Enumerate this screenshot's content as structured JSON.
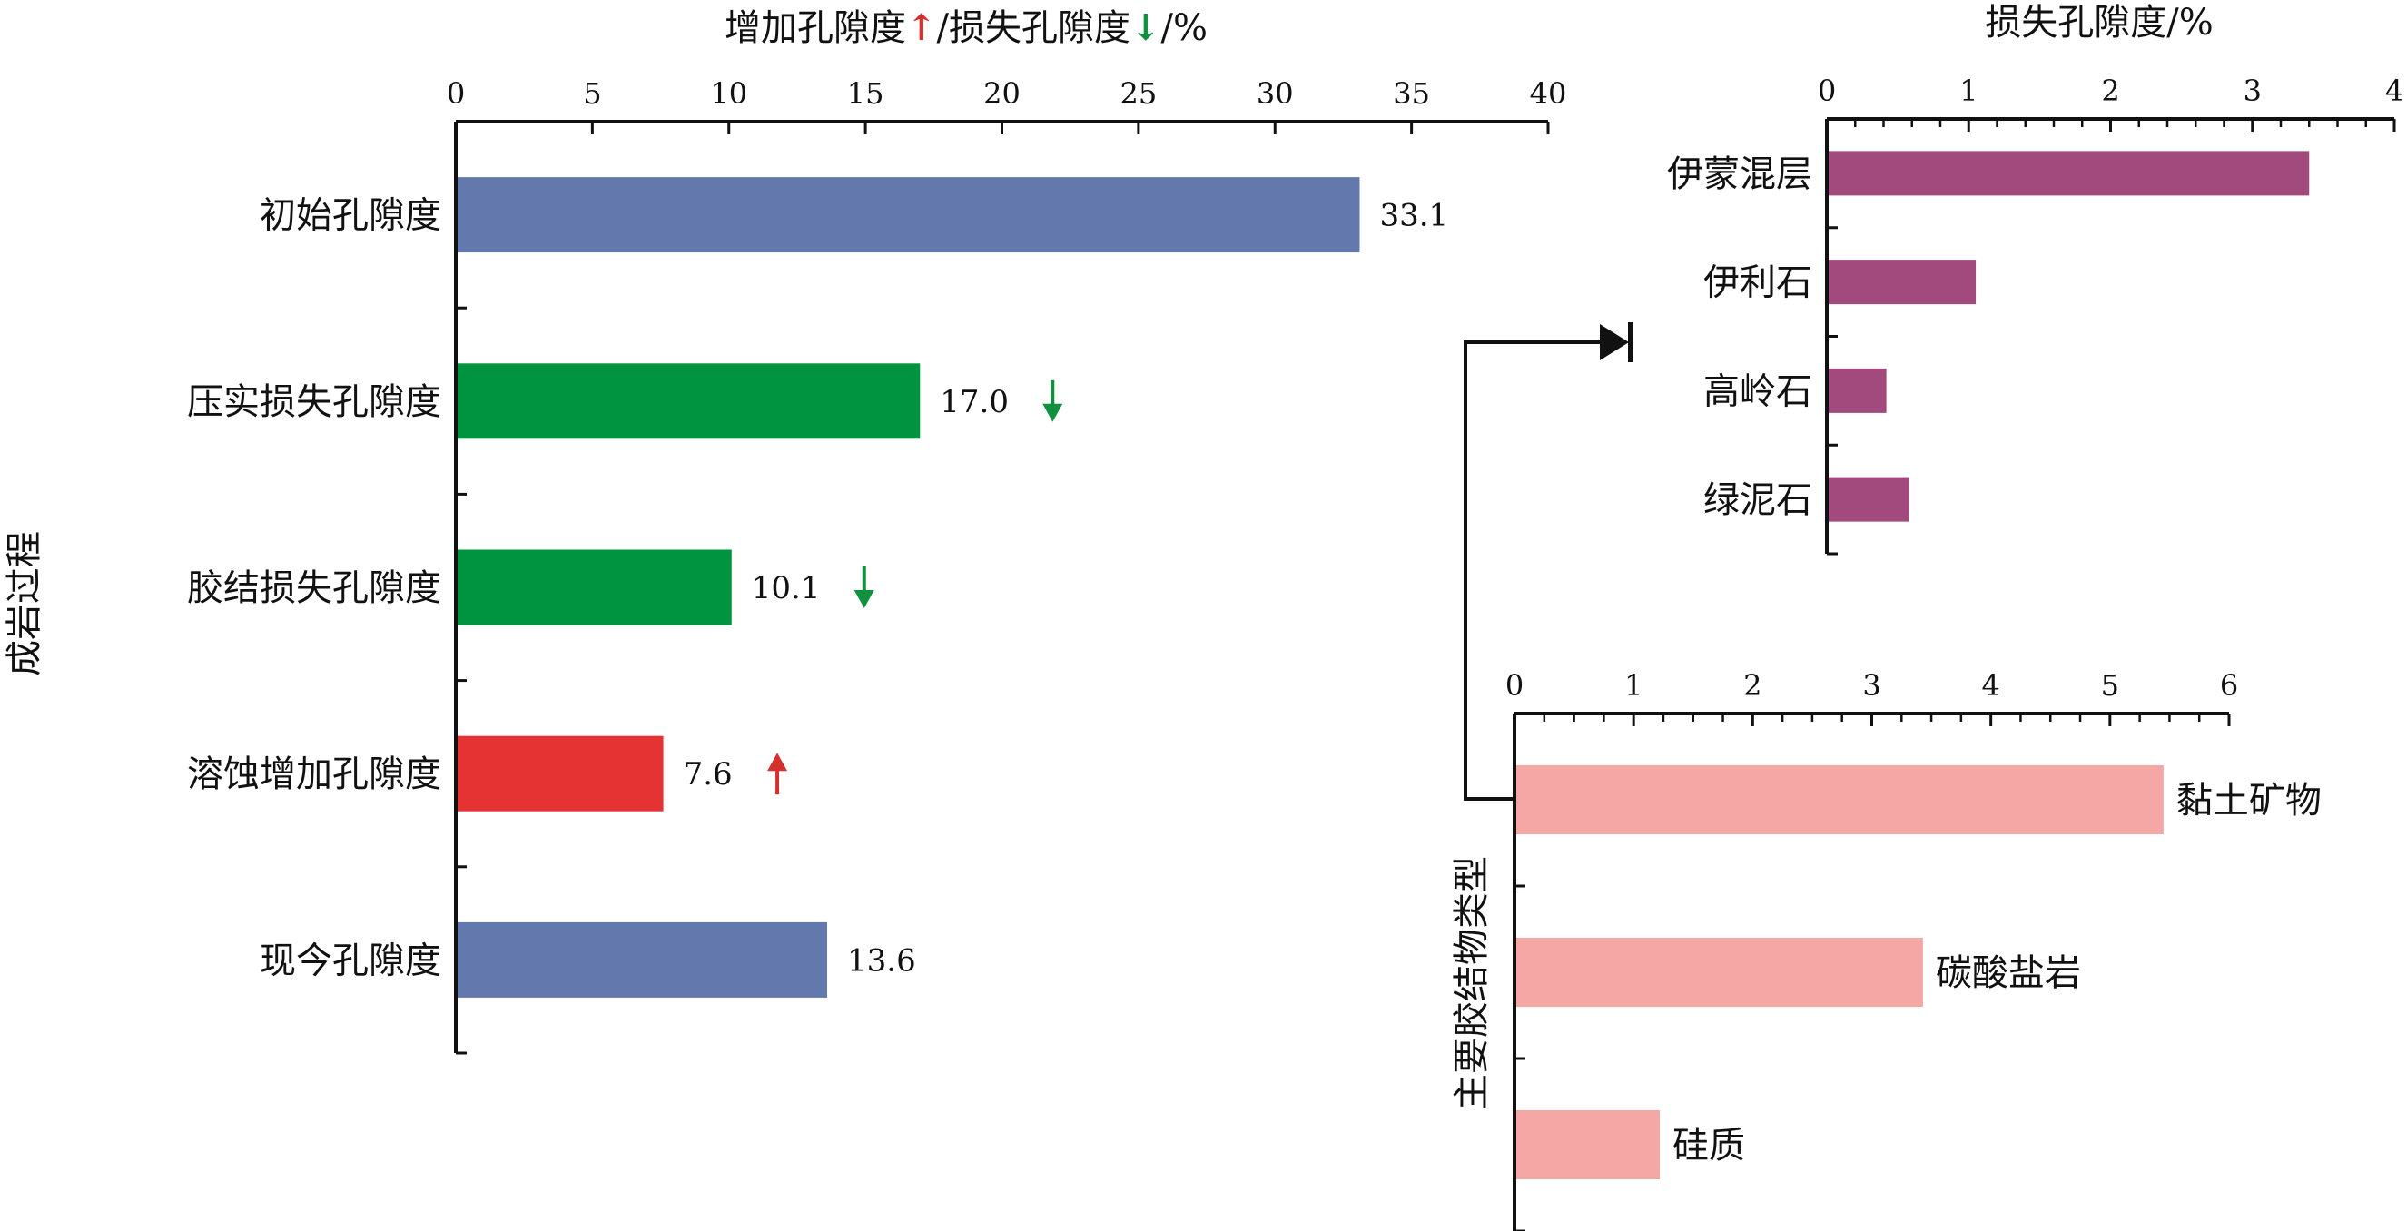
{
  "chart_data": [
    {
      "type": "bar",
      "orientation": "horizontal",
      "title": "",
      "xlabel_parts": [
        "增加孔隙度",
        "/损失孔隙度",
        "/%"
      ],
      "xlabel_arrows": [
        "up",
        "down"
      ],
      "ylabel": "成岩过程",
      "xlim": [
        0,
        40
      ],
      "xticks": [
        "0",
        "5",
        "10",
        "15",
        "20",
        "25",
        "30",
        "35",
        "40"
      ],
      "axis_position": "top",
      "categories": [
        "初始孔隙度",
        "压实损失孔隙度",
        "胶结损失孔隙度",
        "溶蚀增加孔隙度",
        "现今孔隙度"
      ],
      "values": [
        33.1,
        17.0,
        10.1,
        7.6,
        13.6
      ],
      "value_labels": [
        "33.1",
        "17.0",
        "10.1",
        "7.6",
        "13.6"
      ],
      "bar_colors": [
        "#6379ad",
        "#009440",
        "#009440",
        "#e53232",
        "#6379ad"
      ],
      "markers": [
        "",
        "down",
        "down",
        "up",
        ""
      ],
      "marker_colors": {
        "up": "#d4302e",
        "down": "#11903d"
      },
      "grid": false,
      "legend": "none"
    },
    {
      "type": "bar",
      "orientation": "horizontal",
      "title": "",
      "xlabel": "损失孔隙度/%",
      "ylabel": "",
      "xlim": [
        0,
        4
      ],
      "xticks": [
        "0",
        "1",
        "2",
        "3",
        "4"
      ],
      "axis_position": "top",
      "categories": [
        "伊蒙混层",
        "伊利石",
        "高岭石",
        "绿泥石"
      ],
      "values": [
        3.4,
        1.05,
        0.42,
        0.58
      ],
      "bar_color": "#a24a7e",
      "grid": false,
      "legend": "none"
    },
    {
      "type": "bar",
      "orientation": "horizontal",
      "title": "",
      "xlabel": "",
      "ylabel": "主要胶结物类型",
      "xlim": [
        0,
        6
      ],
      "xticks": [
        "0",
        "1",
        "2",
        "3",
        "4",
        "5",
        "6"
      ],
      "axis_position": "top",
      "categories": [
        "黏土矿物",
        "碳酸盐岩",
        "硅质"
      ],
      "values": [
        5.45,
        3.43,
        1.22
      ],
      "bar_color": "#f4a7a5",
      "grid": false,
      "legend": "none"
    }
  ]
}
